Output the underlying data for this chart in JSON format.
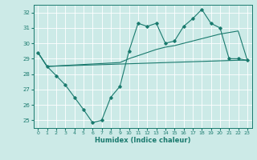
{
  "title": "",
  "xlabel": "Humidex (Indice chaleur)",
  "ylabel": "",
  "background_color": "#cceae7",
  "grid_color": "#ffffff",
  "line_color": "#1a7a6e",
  "xlim": [
    -0.5,
    23.5
  ],
  "ylim": [
    24.5,
    32.5
  ],
  "yticks": [
    25,
    26,
    27,
    28,
    29,
    30,
    31,
    32
  ],
  "xticks": [
    0,
    1,
    2,
    3,
    4,
    5,
    6,
    7,
    8,
    9,
    10,
    11,
    12,
    13,
    14,
    15,
    16,
    17,
    18,
    19,
    20,
    21,
    22,
    23
  ],
  "line1_x": [
    0,
    1,
    2,
    3,
    4,
    5,
    6,
    7,
    8,
    9,
    10,
    11,
    12,
    13,
    14,
    15,
    16,
    17,
    18,
    19,
    20,
    21,
    22,
    23
  ],
  "line1_y": [
    29.4,
    28.5,
    27.9,
    27.3,
    26.5,
    25.7,
    24.85,
    25.0,
    26.5,
    27.2,
    29.5,
    31.3,
    31.1,
    31.3,
    30.0,
    30.15,
    31.1,
    31.6,
    32.2,
    31.3,
    31.0,
    29.0,
    29.0,
    28.9
  ],
  "line2_x": [
    0,
    1,
    22,
    23
  ],
  "line2_y": [
    29.4,
    28.5,
    28.9,
    28.9
  ],
  "line3_x": [
    0,
    1,
    9,
    10,
    11,
    12,
    13,
    14,
    15,
    16,
    17,
    18,
    19,
    20,
    21,
    22,
    23
  ],
  "line3_y": [
    29.4,
    28.5,
    28.75,
    29.0,
    29.2,
    29.4,
    29.6,
    29.75,
    29.85,
    30.0,
    30.15,
    30.3,
    30.45,
    30.6,
    30.7,
    30.8,
    28.9
  ]
}
